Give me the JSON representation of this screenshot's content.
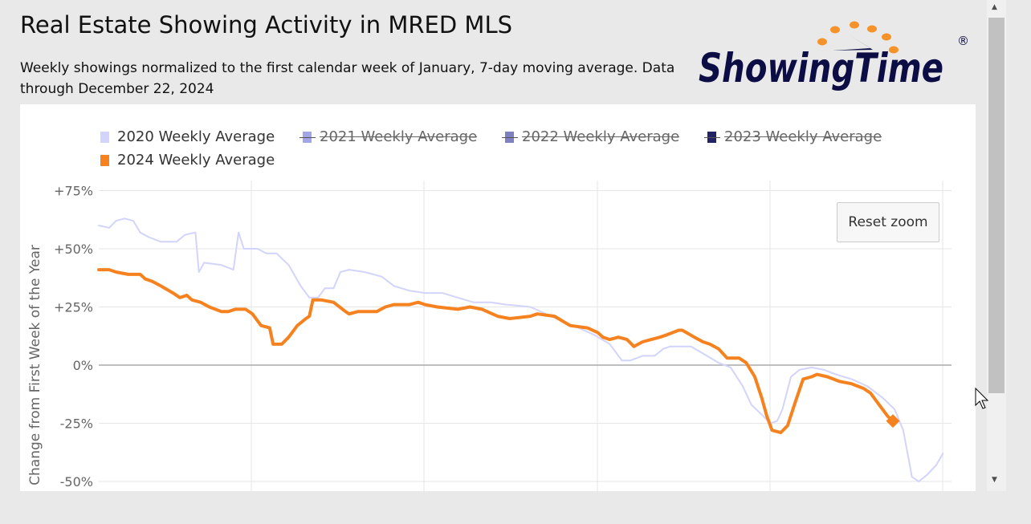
{
  "header": {
    "title": "Real Estate Showing Activity in MRED MLS",
    "subtitle": "Weekly showings normalized to the first calendar week of January, 7-day moving average. Data through December 22, 2024",
    "logo_text": "ShowingTime",
    "logo_mark": "®"
  },
  "reset_zoom_label": "Reset zoom",
  "colors": {
    "2020": "#d2d4fb",
    "2021": "#a3a6e6",
    "2022": "#7e80c0",
    "2023": "#232262",
    "2024": "#f5821f",
    "logo_navy": "#0d0d45",
    "logo_orange": "#f5922a"
  },
  "chart_data": {
    "type": "line",
    "title": "Real Estate Showing Activity in MRED MLS",
    "ylabel": "Change from First Week of the Year",
    "xlabel": "",
    "ylim": [
      -50,
      75
    ],
    "yticks": [
      75,
      50,
      25,
      0,
      -25,
      -50
    ],
    "ytick_labels": [
      "+75%",
      "+50%",
      "+25%",
      "0%",
      "-25%",
      "-50%"
    ],
    "xunit": "week of year (approx.)",
    "xlim": [
      1,
      50.4
    ],
    "grid": true,
    "legend_position": "top-left",
    "legend": [
      {
        "label": "2020 Weekly Average",
        "visible": true
      },
      {
        "label": "2021 Weekly Average",
        "visible": false
      },
      {
        "label": "2022 Weekly Average",
        "visible": false
      },
      {
        "label": "2023 Weekly Average",
        "visible": false
      },
      {
        "label": "2024 Weekly Average",
        "visible": true
      }
    ],
    "series": [
      {
        "name": "2020 Weekly Average",
        "x": [
          1.0,
          1.6,
          2.0,
          2.5,
          3.0,
          3.4,
          3.9,
          4.6,
          5.5,
          6.0,
          6.6,
          6.8,
          7.1,
          8.1,
          8.8,
          9.1,
          9.4,
          10.2,
          10.7,
          11.3,
          12.0,
          12.7,
          13.2,
          13.7,
          14.1,
          14.6,
          15.0,
          15.5,
          16.4,
          17.4,
          18.1,
          19.0,
          19.9,
          20.9,
          21.8,
          22.7,
          23.7,
          24.6,
          26.0,
          26.9,
          27.8,
          28.8,
          29.7,
          30.6,
          31.3,
          31.8,
          32.5,
          33.2,
          33.7,
          34.1,
          35.3,
          36.0,
          36.9,
          37.6,
          38.3,
          38.8,
          39.5,
          39.9,
          40.3,
          40.6,
          41.1,
          41.6,
          42.3,
          43.0,
          43.7,
          44.6,
          45.5,
          46.4,
          47.1,
          47.6,
          48.1,
          48.5,
          49.0,
          49.5,
          49.9
        ],
        "y": [
          60,
          59,
          62,
          63,
          62,
          57,
          55,
          53,
          53,
          56,
          57,
          40,
          44,
          43,
          41,
          57,
          50,
          50,
          48,
          48,
          43,
          34,
          29,
          29,
          33,
          33,
          40,
          41,
          40,
          38,
          34,
          32,
          31,
          31,
          29,
          27,
          27,
          26,
          25,
          22,
          19,
          16,
          13,
          9,
          2,
          2,
          4,
          4,
          7,
          8,
          8,
          5,
          1,
          -1,
          -9,
          -17,
          -22,
          -25,
          -24,
          -19,
          -5,
          -2,
          -1,
          -2,
          -4,
          -6,
          -9,
          -14,
          -19,
          -28,
          -48,
          -50,
          -47,
          -43,
          -38
        ]
      },
      {
        "name": "2024 Weekly Average",
        "x": [
          1.0,
          1.6,
          2.0,
          2.7,
          3.4,
          3.7,
          4.1,
          4.6,
          5.3,
          5.7,
          6.1,
          6.4,
          6.9,
          7.4,
          8.1,
          8.5,
          8.9,
          9.5,
          9.9,
          10.4,
          10.9,
          11.1,
          11.6,
          12.0,
          12.5,
          13.0,
          13.2,
          13.4,
          13.9,
          14.6,
          15.3,
          15.5,
          16.0,
          17.1,
          17.6,
          18.1,
          18.5,
          19.0,
          19.5,
          19.9,
          20.6,
          21.8,
          22.5,
          23.2,
          24.1,
          24.8,
          26.0,
          26.4,
          27.4,
          28.3,
          29.3,
          29.9,
          30.2,
          30.6,
          31.1,
          31.6,
          32.0,
          32.5,
          33.0,
          33.5,
          33.9,
          34.6,
          34.8,
          35.5,
          36.0,
          36.4,
          36.9,
          37.4,
          38.1,
          38.5,
          39.0,
          39.4,
          39.7,
          40.0,
          40.5,
          40.9,
          41.3,
          41.8,
          42.3,
          42.6,
          43.2,
          43.9,
          44.6,
          45.3,
          45.7,
          46.2,
          46.7,
          47.0
        ],
        "y": [
          41,
          41,
          40,
          39,
          39,
          37,
          36,
          34,
          31,
          29,
          30,
          28,
          27,
          25,
          23,
          23,
          24,
          24,
          22,
          17,
          16,
          9,
          9,
          12,
          17,
          20,
          21,
          28,
          28,
          27,
          23,
          22,
          23,
          23,
          25,
          26,
          26,
          26,
          27,
          26,
          25,
          24,
          25,
          24,
          21,
          20,
          21,
          22,
          21,
          17,
          16,
          14,
          12,
          11,
          12,
          11,
          8,
          10,
          11,
          12,
          13,
          15,
          15,
          12,
          10,
          9,
          7,
          3,
          3,
          1,
          -5,
          -14,
          -22,
          -28,
          -29,
          -26,
          -17,
          -6,
          -5,
          -4,
          -5,
          -7,
          -8,
          -10,
          -12,
          -17,
          -22,
          -24
        ]
      }
    ]
  }
}
